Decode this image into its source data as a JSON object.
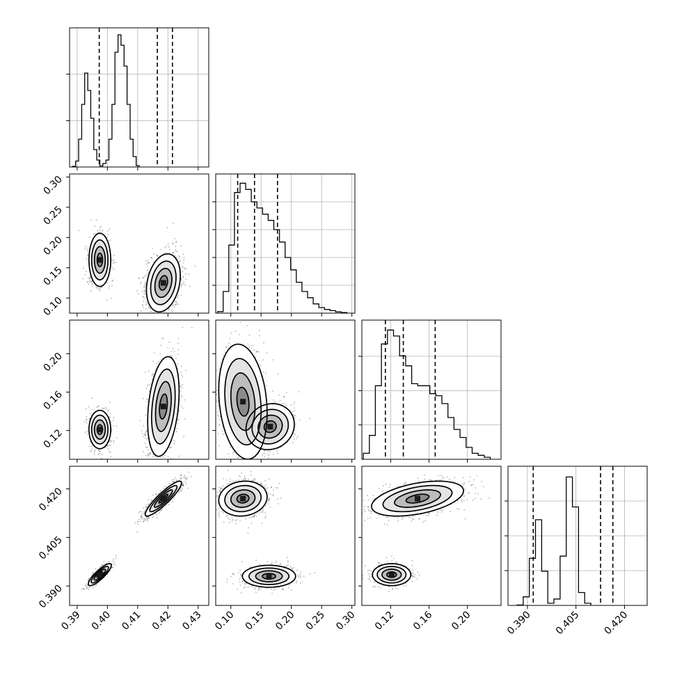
{
  "chart_data": {
    "type": "corner",
    "n_params": 4,
    "colors": {
      "ink": "#000000",
      "grid": "#b0b0b0",
      "density": "#808080"
    },
    "params": [
      {
        "range": [
          0.3875,
          0.4335
        ],
        "ticks": [
          0.39,
          0.4,
          0.41,
          0.42,
          0.43
        ],
        "tick_labels": [
          "0.39",
          "0.40",
          "0.41",
          "0.42",
          "0.43"
        ]
      },
      {
        "range": [
          0.075,
          0.305
        ],
        "ticks": [
          0.1,
          0.15,
          0.2,
          0.25,
          0.3
        ],
        "tick_labels": [
          "0.10",
          "0.15",
          "0.20",
          "0.25",
          "0.30"
        ]
      },
      {
        "range": [
          0.09,
          0.235
        ],
        "ticks": [
          0.12,
          0.16,
          0.2
        ],
        "tick_labels": [
          "0.12",
          "0.16",
          "0.20"
        ]
      },
      {
        "range": [
          0.384,
          0.427
        ],
        "ticks": [
          0.39,
          0.405,
          0.42
        ],
        "tick_labels": [
          "0.390",
          "0.405",
          "0.420"
        ]
      }
    ],
    "diagonal": [
      {
        "bin_start": 0.3885,
        "bin_width": 0.001,
        "counts": [
          0.2,
          1.7,
          8,
          18,
          27,
          22,
          14,
          5,
          2,
          0.3,
          1,
          2,
          8,
          18,
          33,
          38,
          35,
          29,
          18,
          8,
          3,
          0.4
        ],
        "quantiles": [
          0.3973,
          0.4165,
          0.4215
        ],
        "grid_fracs": [
          0.333,
          0.667
        ],
        "ylim_max": 40
      },
      {
        "bin_start": 0.078,
        "bin_width": 0.0093,
        "counts": [
          0.5,
          7,
          22,
          39,
          42,
          40,
          36,
          34,
          32,
          30,
          27,
          23,
          18,
          14,
          10,
          7,
          5,
          3,
          1.8,
          1.2,
          0.8,
          0.4,
          0.2
        ],
        "quantiles": [
          0.1113,
          0.1391,
          0.1771
        ],
        "grid_fracs": [
          0.2,
          0.4,
          0.6,
          0.8
        ],
        "ylim_max": 45
      },
      {
        "bin_start": 0.0915,
        "bin_width": 0.0063,
        "counts": [
          3,
          12,
          37,
          58,
          65,
          62,
          52,
          47,
          38,
          37,
          37,
          33,
          32,
          28,
          21,
          15,
          11,
          6,
          3,
          2,
          1
        ],
        "quantiles": [
          0.1145,
          0.1332,
          0.1664
        ],
        "grid_fracs": [
          0.247,
          0.493,
          0.74
        ],
        "ylim_max": 70
      },
      {
        "bin_start": 0.3868,
        "bin_width": 0.0019,
        "counts": [
          0.2,
          4,
          22,
          40,
          16,
          1,
          3,
          23,
          60,
          46,
          6,
          1
        ],
        "quantiles": [
          0.3918,
          0.4126,
          0.4164
        ],
        "grid_fracs": [
          0.25,
          0.5,
          0.75
        ],
        "ylim_max": 65
      }
    ],
    "pairs": [
      {
        "x": 0,
        "y": 1,
        "clusters": [
          {
            "mean": [
              0.3975,
              0.163
            ],
            "sd": [
              0.0018,
              0.022
            ],
            "rho": 0.0,
            "weight": 0.35
          },
          {
            "mean": [
              0.4185,
              0.125
            ],
            "sd": [
              0.0028,
              0.024
            ],
            "rho": 0.25,
            "weight": 0.65
          }
        ]
      },
      {
        "x": 0,
        "y": 2,
        "clusters": [
          {
            "mean": [
              0.3975,
              0.121
            ],
            "sd": [
              0.0018,
              0.01
            ],
            "rho": 0.0,
            "weight": 0.35
          },
          {
            "mean": [
              0.4185,
              0.145
            ],
            "sd": [
              0.0026,
              0.026
            ],
            "rho": 0.3,
            "weight": 0.65
          }
        ]
      },
      {
        "x": 0,
        "y": 3,
        "clusters": [
          {
            "mean": [
              0.3975,
              0.3935
            ],
            "sd": [
              0.0019,
              0.0017
            ],
            "rho": 0.85,
            "weight": 0.35
          },
          {
            "mean": [
              0.4185,
              0.417
            ],
            "sd": [
              0.003,
              0.0027
            ],
            "rho": 0.9,
            "weight": 0.65
          }
        ]
      },
      {
        "x": 1,
        "y": 2,
        "clusters": [
          {
            "mean": [
              0.12,
              0.15
            ],
            "sd": [
              0.02,
              0.03
            ],
            "rho": -0.2,
            "weight": 0.55
          },
          {
            "mean": [
              0.165,
              0.124
            ],
            "sd": [
              0.02,
              0.012
            ],
            "rho": 0.1,
            "weight": 0.45
          }
        ]
      },
      {
        "x": 1,
        "y": 3,
        "clusters": [
          {
            "mean": [
              0.12,
              0.417
            ],
            "sd": [
              0.02,
              0.0027
            ],
            "rho": 0.1,
            "weight": 0.65
          },
          {
            "mean": [
              0.163,
              0.393
            ],
            "sd": [
              0.022,
              0.0017
            ],
            "rho": 0.0,
            "weight": 0.35
          }
        ]
      },
      {
        "x": 2,
        "y": 3,
        "clusters": [
          {
            "mean": [
              0.148,
              0.417
            ],
            "sd": [
              0.024,
              0.0027
            ],
            "rho": 0.45,
            "weight": 0.65
          },
          {
            "mean": [
              0.121,
              0.3935
            ],
            "sd": [
              0.01,
              0.0017
            ],
            "rho": 0.0,
            "weight": 0.35
          }
        ]
      }
    ]
  }
}
